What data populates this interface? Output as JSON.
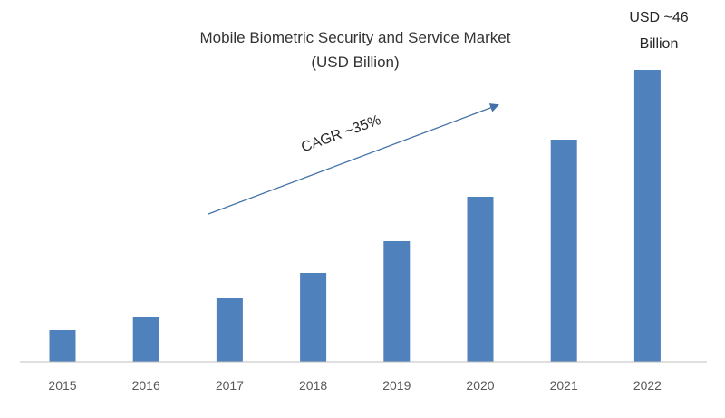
{
  "chart_data": {
    "type": "bar",
    "title_lines": [
      "Mobile Biometric Security and Service Market",
      "(USD Billion)"
    ],
    "categories": [
      "2015",
      "2016",
      "2017",
      "2018",
      "2019",
      "2020",
      "2021",
      "2022"
    ],
    "values": [
      5.0,
      7.0,
      10.0,
      14.0,
      19.0,
      26.0,
      35.0,
      46.0
    ],
    "ylim": [
      0,
      50
    ],
    "grid": false,
    "bar_color": "#4F81BD",
    "axis_color": "#BFBFBF",
    "trend_label": "CAGR ~35%",
    "trend_color": "#4472A8",
    "end_label_lines": [
      "USD ~46",
      "Billion"
    ]
  }
}
